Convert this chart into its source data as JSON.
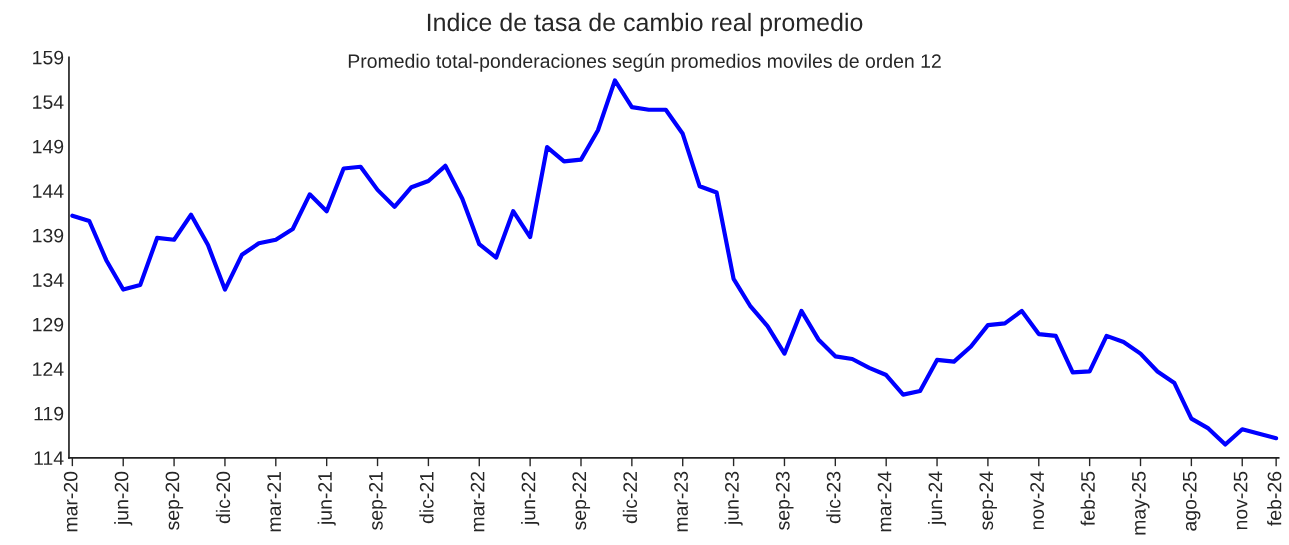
{
  "chart_data": {
    "type": "line",
    "title": "Indice de tasa de cambio real promedio",
    "subtitle": "Promedio total-ponderaciones según promedios moviles de orden 12",
    "categories": [
      "mar-20",
      null,
      null,
      "jun-20",
      null,
      null,
      "sep-20",
      null,
      null,
      "dic-20",
      null,
      null,
      "mar-21",
      null,
      null,
      "jun-21",
      null,
      null,
      "sep-21",
      null,
      null,
      "dic-21",
      null,
      null,
      "mar-22",
      null,
      null,
      "jun-22",
      null,
      null,
      "sep-22",
      null,
      null,
      "dic-22",
      null,
      null,
      "mar-23",
      null,
      null,
      "jun-23",
      null,
      null,
      "sep-23",
      null,
      null,
      "dic-23",
      null,
      null,
      "mar-24",
      null,
      null,
      "jun-24",
      null,
      null,
      "sep-24",
      null,
      null,
      "nov-24",
      null,
      null,
      "feb-25",
      null,
      null,
      "may-25",
      null,
      null,
      "ago-25",
      null,
      null,
      "nov-25",
      null,
      "feb-26"
    ],
    "series": [
      {
        "color": "#0000ff",
        "values": [
          141.2,
          140.6,
          136.2,
          132.9,
          133.4,
          138.7,
          138.5,
          141.3,
          137.9,
          132.9,
          136.8,
          138.1,
          138.5,
          139.7,
          143.6,
          141.7,
          146.5,
          146.7,
          144.1,
          142.2,
          144.4,
          145.1,
          146.8,
          143.1,
          138.0,
          136.5,
          141.7,
          138.8,
          148.9,
          147.3,
          147.5,
          150.8,
          156.4,
          153.4,
          153.1,
          153.1,
          150.4,
          144.5,
          143.8,
          134.1,
          131.0,
          128.8,
          125.7,
          130.5,
          127.3,
          125.4,
          125.1,
          124.1,
          123.3,
          121.1,
          121.5,
          125.0,
          124.8,
          126.5,
          128.9,
          129.1,
          130.5,
          127.9,
          127.7,
          123.6,
          123.7,
          127.7,
          127.0,
          125.7,
          123.7,
          122.4,
          118.4,
          117.3,
          115.5,
          117.2,
          116.7,
          116.2
        ]
      }
    ],
    "ylim": [
      114,
      159
    ],
    "yticks": [
      114,
      119,
      124,
      129,
      134,
      139,
      144,
      149,
      154,
      159
    ],
    "grid": false,
    "legend": false,
    "marker": "none",
    "line_style": "solid"
  }
}
